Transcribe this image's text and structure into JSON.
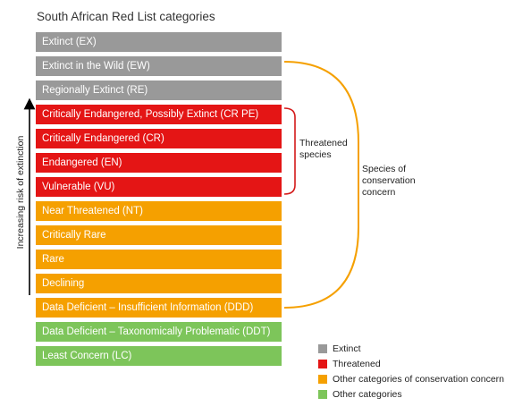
{
  "title": "South African Red List categories",
  "colors": {
    "extinct": "#999999",
    "threatened": "#e41515",
    "other_concern": "#f5a000",
    "other": "#7dc55a"
  },
  "categories": [
    {
      "label": "Extinct (EX)",
      "group": "extinct"
    },
    {
      "label": "Extinct in the Wild (EW)",
      "group": "extinct"
    },
    {
      "label": "Regionally Extinct (RE)",
      "group": "extinct"
    },
    {
      "label": "Critically Endangered, Possibly Extinct (CR PE)",
      "group": "threatened"
    },
    {
      "label": "Critically Endangered (CR)",
      "group": "threatened"
    },
    {
      "label": "Endangered (EN)",
      "group": "threatened"
    },
    {
      "label": "Vulnerable (VU)",
      "group": "threatened"
    },
    {
      "label": "Near Threatened (NT)",
      "group": "other_concern"
    },
    {
      "label": "Critically Rare",
      "group": "other_concern"
    },
    {
      "label": "Rare",
      "group": "other_concern"
    },
    {
      "label": "Declining",
      "group": "other_concern"
    },
    {
      "label": "Data Deficient – Insufficient Information (DDD)",
      "group": "other_concern"
    },
    {
      "label": "Data Deficient – Taxonomically Problematic (DDT)",
      "group": "other"
    },
    {
      "label": "Least Concern (LC)",
      "group": "other"
    }
  ],
  "annotations": {
    "axis_label": "Increasing risk of extinction",
    "threatened_label_line1": "Threatened",
    "threatened_label_line2": "species",
    "concern_label_line1": "Species of",
    "concern_label_line2": "conservation",
    "concern_label_line3": "concern"
  },
  "legend": [
    {
      "label": "Extinct",
      "group": "extinct"
    },
    {
      "label": "Threatened",
      "group": "threatened"
    },
    {
      "label": "Other categories of conservation concern",
      "group": "other_concern"
    },
    {
      "label": "Other categories",
      "group": "other"
    }
  ]
}
